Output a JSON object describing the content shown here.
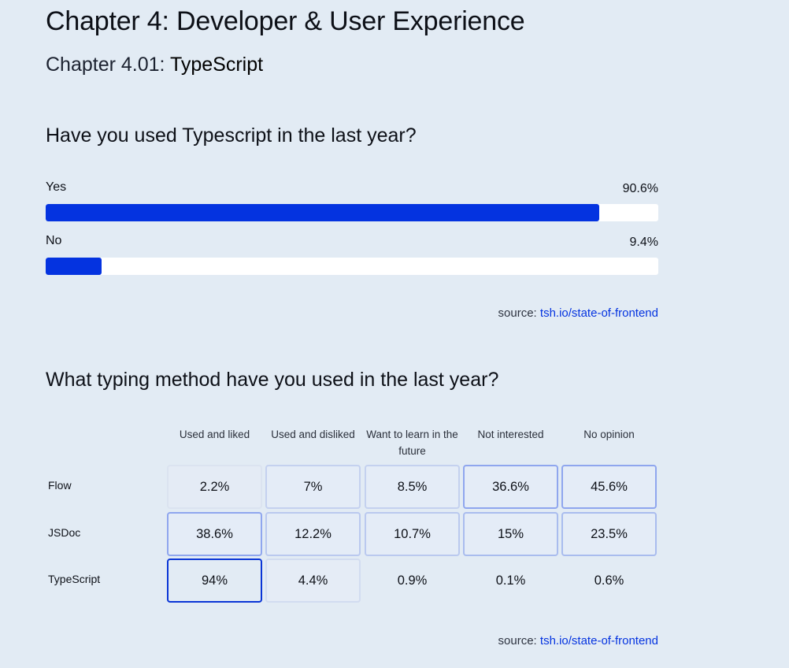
{
  "chapter": {
    "title": "Chapter 4: Developer & User Experience",
    "subtitle_prefix": "Chapter 4.01: ",
    "subtitle_name": "TypeScript"
  },
  "source": {
    "label": "source:",
    "link": "tsh.io/state-of-frontend"
  },
  "chart_data": [
    {
      "type": "bar",
      "title": "Have you used Typescript in the last year?",
      "categories": [
        "Yes",
        "No"
      ],
      "values": [
        90.6,
        9.4
      ],
      "value_labels": [
        "90.6%",
        "9.4%"
      ],
      "unit": "%",
      "xlim": [
        0,
        100
      ]
    },
    {
      "type": "heatmap",
      "title": "What typing method have you used in the last year?",
      "columns": [
        "Used and liked",
        "Used and disliked",
        "Want to learn in the future",
        "Not interested",
        "No opinion"
      ],
      "rows": [
        "Flow",
        "JSDoc",
        "TypeScript"
      ],
      "values": [
        [
          2.2,
          7,
          8.5,
          36.6,
          45.6
        ],
        [
          38.6,
          12.2,
          10.7,
          15,
          23.5
        ],
        [
          94,
          4.4,
          0.9,
          0.1,
          0.6
        ]
      ],
      "value_labels": [
        [
          "2.2%",
          "7%",
          "8.5%",
          "36.6%",
          "45.6%"
        ],
        [
          "38.6%",
          "12.2%",
          "10.7%",
          "15%",
          "23.5%"
        ],
        [
          "94%",
          "4.4%",
          "0.9%",
          "0.1%",
          "0.6%"
        ]
      ],
      "unit": "%",
      "accent_color": "#0433e0"
    }
  ]
}
